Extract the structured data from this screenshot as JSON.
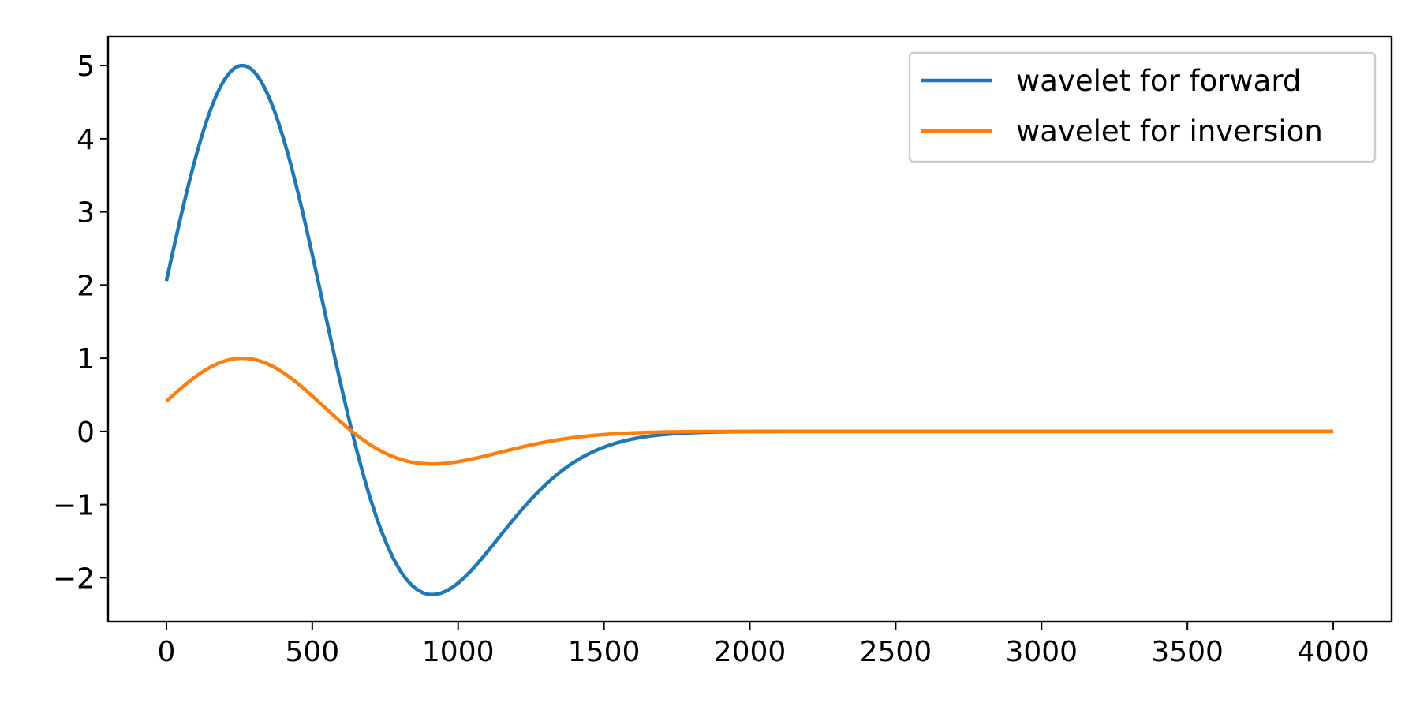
{
  "chart_data": {
    "type": "line",
    "title": "",
    "xlabel": "",
    "ylabel": "",
    "xlim": [
      -200,
      4200
    ],
    "ylim": [
      -2.6,
      5.4
    ],
    "xticks": [
      0,
      500,
      1000,
      1500,
      2000,
      2500,
      3000,
      3500,
      4000
    ],
    "xtick_labels": [
      "0",
      "500",
      "1000",
      "1500",
      "2000",
      "2500",
      "3000",
      "3500",
      "4000"
    ],
    "yticks": [
      -2,
      -1,
      0,
      1,
      2,
      3,
      4,
      5
    ],
    "ytick_labels": [
      "−2",
      "−1",
      "0",
      "1",
      "2",
      "3",
      "4",
      "5"
    ],
    "grid": false,
    "legend_position": "top-right",
    "series": [
      {
        "name": "wavelet for forward",
        "color": "#1f77b4",
        "peak_x": 260,
        "peak_y": 5.0,
        "trough_y": -2.23,
        "x_range": [
          0,
          4000
        ],
        "shape": "ricker"
      },
      {
        "name": "wavelet for inversion",
        "color": "#ff7f0e",
        "peak_x": 260,
        "peak_y": 1.0,
        "trough_y": -0.45,
        "x_range": [
          0,
          4000
        ],
        "shape": "ricker"
      }
    ]
  }
}
